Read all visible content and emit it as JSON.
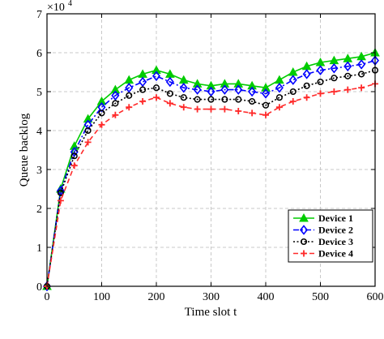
{
  "chart_data": {
    "type": "line",
    "title": "",
    "xlabel": "Time slot t",
    "ylabel": "Queue backlog",
    "y_multiplier_label": "×10",
    "y_multiplier_exponent": "4",
    "xlim": [
      0,
      600
    ],
    "ylim": [
      0,
      7
    ],
    "xticks": [
      0,
      100,
      200,
      300,
      400,
      500,
      600
    ],
    "yticks": [
      0,
      1,
      2,
      3,
      4,
      5,
      6,
      7
    ],
    "grid": true,
    "legend_position": "lower-right",
    "x": [
      0,
      25,
      50,
      75,
      100,
      125,
      150,
      175,
      200,
      225,
      250,
      275,
      300,
      325,
      350,
      375,
      400,
      425,
      450,
      475,
      500,
      525,
      550,
      575,
      600
    ],
    "series": [
      {
        "name": "Device 1",
        "color": "#00cc00",
        "linestyle": "solid",
        "marker": "triangle",
        "values": [
          0,
          2.5,
          3.6,
          4.3,
          4.75,
          5.05,
          5.3,
          5.45,
          5.55,
          5.45,
          5.3,
          5.2,
          5.15,
          5.2,
          5.2,
          5.15,
          5.1,
          5.3,
          5.5,
          5.65,
          5.75,
          5.8,
          5.85,
          5.9,
          6.0
        ]
      },
      {
        "name": "Device 2",
        "color": "#0000ff",
        "linestyle": "dashdot",
        "marker": "diamond",
        "values": [
          0,
          2.45,
          3.45,
          4.15,
          4.6,
          4.9,
          5.1,
          5.25,
          5.4,
          5.25,
          5.1,
          5.05,
          5.0,
          5.05,
          5.05,
          5.0,
          4.95,
          5.1,
          5.3,
          5.45,
          5.55,
          5.6,
          5.65,
          5.7,
          5.8
        ]
      },
      {
        "name": "Device 3",
        "color": "#000000",
        "linestyle": "dotted",
        "marker": "circle",
        "values": [
          0,
          2.4,
          3.35,
          4.0,
          4.45,
          4.7,
          4.9,
          5.05,
          5.1,
          4.95,
          4.85,
          4.8,
          4.8,
          4.8,
          4.8,
          4.75,
          4.65,
          4.85,
          5.0,
          5.15,
          5.25,
          5.35,
          5.4,
          5.45,
          5.55
        ]
      },
      {
        "name": "Device 4",
        "color": "#ff2a2a",
        "linestyle": "dashed",
        "marker": "plus",
        "values": [
          0,
          2.2,
          3.1,
          3.7,
          4.15,
          4.4,
          4.6,
          4.75,
          4.85,
          4.7,
          4.6,
          4.55,
          4.55,
          4.55,
          4.5,
          4.45,
          4.4,
          4.6,
          4.75,
          4.85,
          4.95,
          5.0,
          5.05,
          5.1,
          5.2
        ]
      }
    ]
  }
}
